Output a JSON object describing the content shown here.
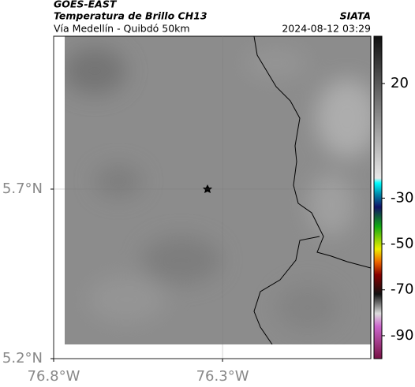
{
  "chart_data": {
    "type": "map",
    "title": "GOES-EAST",
    "subtitle": "Temperatura de Brillo CH13",
    "location": "Vía Medellín - Quibdó 50km",
    "source": "SIATA",
    "timestamp": "2024-08-12 03:29",
    "xlim": [
      -76.8,
      -75.861
    ],
    "ylim": [
      5.2,
      6.151
    ],
    "xticks": [
      {
        "value": -76.8,
        "label": "76.8°W"
      },
      {
        "value": -76.3,
        "label": "76.3°W"
      }
    ],
    "yticks": [
      {
        "value": 5.2,
        "label": "5.2°N"
      },
      {
        "value": 5.7,
        "label": "5.7°N"
      }
    ],
    "grid": true,
    "colorbar": {
      "clim": [
        -100,
        40.6
      ],
      "ticks": [
        20,
        -30,
        -50,
        -70,
        -90
      ]
    }
  }
}
